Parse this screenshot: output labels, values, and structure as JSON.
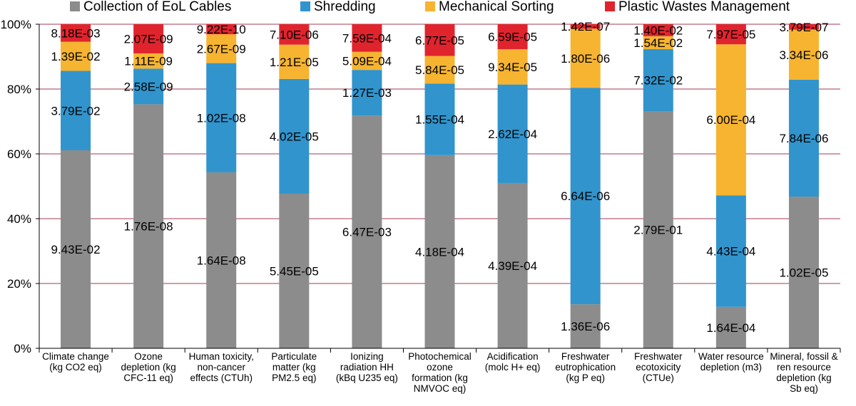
{
  "chart_data": {
    "type": "bar",
    "stacked": true,
    "normalized_percent": true,
    "title": "",
    "xlabel": "",
    "ylabel": "",
    "ylim": [
      0,
      100
    ],
    "yticks": [
      "0%",
      "20%",
      "40%",
      "60%",
      "80%",
      "100%"
    ],
    "grid": true,
    "legend_position": "top",
    "categories": [
      [
        "Climate change",
        "(kg CO2 eq)"
      ],
      [
        "Ozone",
        "depletion (kg",
        "CFC-11 eq)"
      ],
      [
        "Human toxicity,",
        "non-cancer",
        "effects (CTUh)"
      ],
      [
        "Particulate",
        "matter (kg",
        "PM2.5 eq)"
      ],
      [
        "Ionizing",
        "radiation HH",
        "(kBq U235 eq)"
      ],
      [
        "Photochemical",
        "ozone",
        "formation (kg",
        "NMVOC eq)"
      ],
      [
        "Acidification",
        "(molc H+ eq)"
      ],
      [
        "Freshwater",
        "eutrophication",
        "(kg P eq)"
      ],
      [
        "Freshwater",
        "ecotoxicity",
        "(CTUe)"
      ],
      [
        "Water resource",
        "depletion (m3)"
      ],
      [
        "Mineral, fossil &",
        "ren resource",
        "depletion (kg",
        "Sb eq)"
      ]
    ],
    "series": [
      {
        "name": "Collection of EoL Cables",
        "color": "#8c8c8c",
        "percent": [
          61.1,
          75.3,
          54.3,
          47.7,
          71.8,
          59.6,
          51.0,
          13.6,
          73.1,
          12.8,
          46.8
        ],
        "labels": [
          "9.43E-02",
          "1.76E-08",
          "1.64E-08",
          "5.45E-05",
          "6.47E-03",
          "4.18E-04",
          "4.39E-04",
          "1.36E-06",
          "2.79E-01",
          "1.64E-04",
          "1.02E-05"
        ]
      },
      {
        "name": "Shredding",
        "color": "#3194cc",
        "percent": [
          24.5,
          11.0,
          33.7,
          35.4,
          14.1,
          22.1,
          30.4,
          66.8,
          19.2,
          34.4,
          36.1
        ],
        "labels": [
          "3.79E-02",
          "2.58E-09",
          "1.02E-08",
          "4.02E-05",
          "1.27E-03",
          "1.55E-04",
          "2.62E-04",
          "6.64E-06",
          "7.32E-02",
          "4.43E-04",
          "7.84E-06"
        ]
      },
      {
        "name": "Mechanical Sorting",
        "color": "#f6b431",
        "percent": [
          9.0,
          4.7,
          8.9,
          10.6,
          5.6,
          8.5,
          10.9,
          18.2,
          4.0,
          46.6,
          15.4
        ],
        "labels": [
          "1.39E-02",
          "1.11E-09",
          "2.67E-09",
          "1.21E-05",
          "5.09E-04",
          "5.84E-05",
          "9.34E-05",
          "1.80E-06",
          "1.54E-02",
          "6.00E-04",
          "3.34E-06"
        ]
      },
      {
        "name": "Plastic Wastes Management",
        "color": "#e0242e",
        "percent": [
          5.4,
          9.0,
          3.1,
          6.3,
          8.5,
          9.8,
          7.7,
          1.4,
          3.7,
          6.2,
          1.7
        ],
        "labels": [
          "8.18E-03",
          "2.07E-09",
          "9.22E-10",
          "7.10E-06",
          "7.59E-04",
          "6.77E-05",
          "6.59E-05",
          "1.42E-07",
          "1.40E-02",
          "7.97E-05",
          "3.79E-07"
        ]
      }
    ]
  }
}
